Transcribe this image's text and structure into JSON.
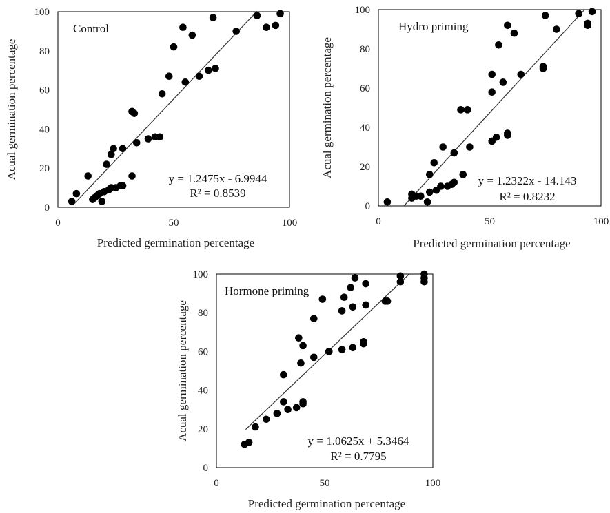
{
  "chart_data": [
    {
      "type": "scatter",
      "title": "Control",
      "xlabel": "Predicted germination percentage",
      "ylabel": "Acual germination percentage",
      "xlim": [
        0,
        100
      ],
      "ylim": [
        0,
        100
      ],
      "xticks": [
        "0",
        "50",
        "100"
      ],
      "yticks": [
        "0",
        "20",
        "40",
        "60",
        "80",
        "100"
      ],
      "equation": "y = 1.2475x - 6.9944",
      "r2": "R² = 0.8539",
      "trendline": {
        "slope": 1.2475,
        "intercept": -6.9944,
        "x_start": 6.5,
        "x_end": 86
      },
      "points": [
        [
          6,
          3
        ],
        [
          8,
          7
        ],
        [
          13,
          16
        ],
        [
          15,
          4
        ],
        [
          16,
          5
        ],
        [
          17,
          6
        ],
        [
          18,
          7
        ],
        [
          19,
          3
        ],
        [
          20,
          8
        ],
        [
          21,
          22
        ],
        [
          22,
          9
        ],
        [
          23,
          10
        ],
        [
          23,
          27
        ],
        [
          24,
          30
        ],
        [
          25,
          10
        ],
        [
          27,
          11
        ],
        [
          28,
          30
        ],
        [
          28,
          11
        ],
        [
          32,
          16
        ],
        [
          32,
          49
        ],
        [
          33,
          48
        ],
        [
          34,
          33
        ],
        [
          39,
          35
        ],
        [
          42,
          36
        ],
        [
          44,
          36
        ],
        [
          45,
          58
        ],
        [
          48,
          67
        ],
        [
          50,
          82
        ],
        [
          54,
          92
        ],
        [
          55,
          64
        ],
        [
          58,
          88
        ],
        [
          61,
          67
        ],
        [
          65,
          70
        ],
        [
          67,
          97
        ],
        [
          68,
          71
        ],
        [
          77,
          90
        ],
        [
          86,
          98
        ],
        [
          90,
          92
        ],
        [
          94,
          93
        ],
        [
          96,
          99
        ]
      ]
    },
    {
      "type": "scatter",
      "title": "Hydro priming",
      "xlabel": "Predicted germination percentage",
      "ylabel": "Acual germination percentage",
      "xlim": [
        0,
        100
      ],
      "ylim": [
        0,
        100
      ],
      "xticks": [
        "0",
        "50",
        "100"
      ],
      "yticks": [
        "0",
        "20",
        "40",
        "60",
        "80",
        "100"
      ],
      "equation": "y = 1.2322x - 14.143",
      "r2": "R² = 0.8232",
      "trendline": {
        "slope": 1.2322,
        "intercept": -14.143,
        "x_start": 11.5,
        "x_end": 92.5
      },
      "points": [
        [
          4,
          2
        ],
        [
          15,
          4
        ],
        [
          15,
          6
        ],
        [
          17,
          5
        ],
        [
          19,
          5
        ],
        [
          22,
          2
        ],
        [
          23,
          16
        ],
        [
          23,
          7
        ],
        [
          25,
          22
        ],
        [
          26,
          8
        ],
        [
          28,
          10
        ],
        [
          29,
          30
        ],
        [
          31,
          10
        ],
        [
          33,
          11
        ],
        [
          34,
          27
        ],
        [
          34,
          12
        ],
        [
          37,
          49
        ],
        [
          38,
          16
        ],
        [
          40,
          49
        ],
        [
          41,
          30
        ],
        [
          51,
          33
        ],
        [
          51,
          58
        ],
        [
          51,
          67
        ],
        [
          53,
          35
        ],
        [
          54,
          82
        ],
        [
          56,
          63
        ],
        [
          58,
          92
        ],
        [
          58,
          36
        ],
        [
          58,
          37
        ],
        [
          61,
          88
        ],
        [
          64,
          67
        ],
        [
          74,
          70
        ],
        [
          74,
          71
        ],
        [
          75,
          97
        ],
        [
          80,
          90
        ],
        [
          90,
          98
        ],
        [
          94,
          92
        ],
        [
          94,
          93
        ],
        [
          96,
          99
        ]
      ]
    },
    {
      "type": "scatter",
      "title": "Hormone priming",
      "xlabel": "Predicted germination percentage",
      "ylabel": "Acual germination percentage",
      "xlim": [
        0,
        100
      ],
      "ylim": [
        0,
        100
      ],
      "xticks": [
        "0",
        "50",
        "100"
      ],
      "yticks": [
        "0",
        "20",
        "40",
        "60",
        "80",
        "100"
      ],
      "equation": "y = 1.0625x + 5.3464",
      "r2": "R² = 0.7795",
      "trendline": {
        "slope": 1.0625,
        "intercept": 5.3464,
        "x_start": 13.5,
        "x_end": 89.1
      },
      "points": [
        [
          13,
          12
        ],
        [
          15,
          13
        ],
        [
          18,
          21
        ],
        [
          23,
          25
        ],
        [
          28,
          28
        ],
        [
          31,
          48
        ],
        [
          31,
          34
        ],
        [
          33,
          30
        ],
        [
          37,
          31
        ],
        [
          38,
          67
        ],
        [
          39,
          54
        ],
        [
          40,
          63
        ],
        [
          40,
          33
        ],
        [
          40,
          34
        ],
        [
          45,
          77
        ],
        [
          45,
          57
        ],
        [
          49,
          87
        ],
        [
          52,
          60
        ],
        [
          58,
          81
        ],
        [
          58,
          61
        ],
        [
          59,
          88
        ],
        [
          62,
          93
        ],
        [
          63,
          83
        ],
        [
          63,
          62
        ],
        [
          64,
          98
        ],
        [
          68,
          64
        ],
        [
          68,
          65
        ],
        [
          69,
          84
        ],
        [
          69,
          95
        ],
        [
          78,
          86
        ],
        [
          79,
          86
        ],
        [
          85,
          96
        ],
        [
          85,
          99
        ],
        [
          96,
          96
        ],
        [
          96,
          98
        ],
        [
          96,
          100
        ]
      ]
    }
  ]
}
